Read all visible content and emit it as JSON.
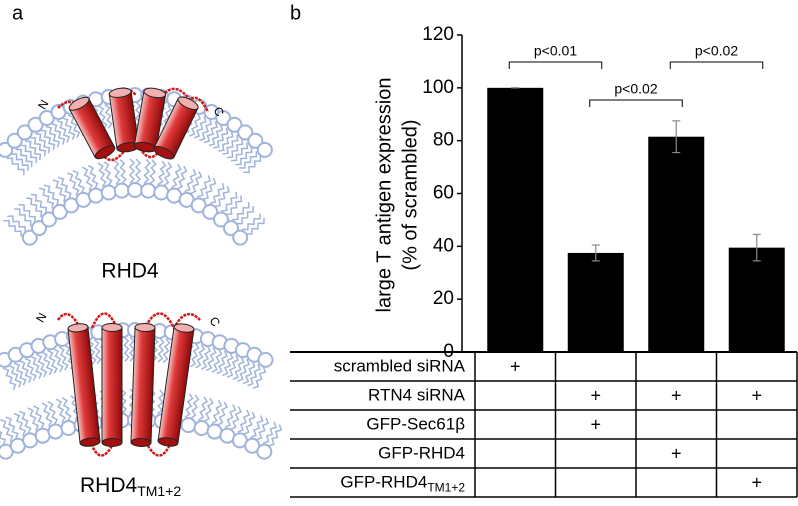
{
  "panel_labels": [
    "a",
    "b"
  ],
  "diagram": {
    "terminus_n": "N",
    "terminus_c": "C",
    "top_label": "RHD4",
    "bottom_label": {
      "text": "RHD4",
      "subscript": "TM1+2"
    }
  },
  "chart_data": {
    "type": "bar",
    "y_label": [
      "large T antigen expression",
      "(% of scrambled)"
    ],
    "values": [
      100,
      37.5,
      81.5,
      39.5
    ],
    "errors": [
      0,
      3,
      6,
      5
    ],
    "color": "#000000",
    "ylim": [
      0,
      120
    ],
    "yticks": [
      0,
      20,
      40,
      60,
      80,
      100,
      120
    ],
    "significance": [
      "p<0.01",
      "p<0.02",
      "p<0.02"
    ],
    "table": {
      "rows": [
        {
          "label": "scrambled siRNA",
          "cells": [
            "+",
            null,
            null,
            null
          ]
        },
        {
          "label": "RTN4 siRNA",
          "cells": [
            null,
            "+",
            "+",
            "+"
          ]
        },
        {
          "label": "GFP-Sec61β",
          "cells": [
            null,
            "+",
            null,
            null
          ]
        },
        {
          "label": "GFP-RHD4",
          "cells": [
            null,
            null,
            "+",
            null
          ]
        },
        {
          "label": "GFP-RHD4",
          "label_sub": "TM1+2",
          "cells": [
            null,
            null,
            null,
            "+"
          ]
        }
      ]
    }
  }
}
